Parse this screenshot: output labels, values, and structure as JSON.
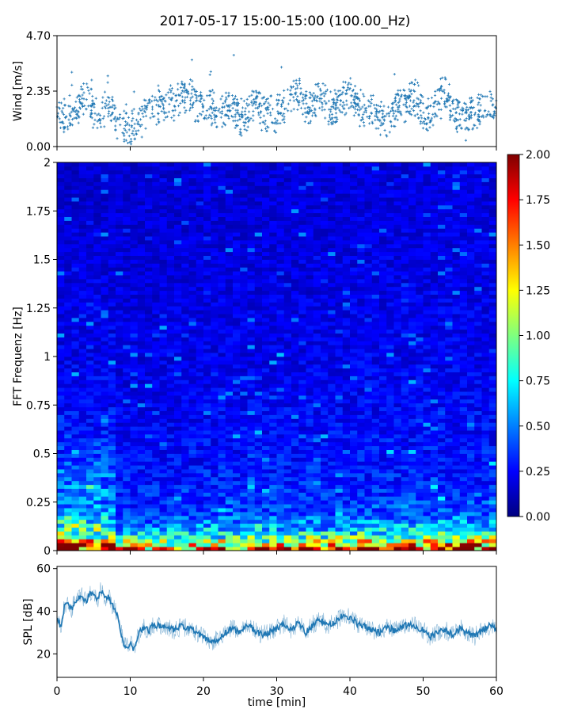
{
  "figure_title": "2017-05-17 15:00-15:00 (100.00_Hz)",
  "colormap": [
    "#00007f",
    "#0000ff",
    "#007fff",
    "#00ffff",
    "#7fff7f",
    "#ffff00",
    "#ff7f00",
    "#ff0000",
    "#7f0000"
  ],
  "chart_data": [
    {
      "id": "wind",
      "type": "scatter",
      "title": "",
      "xlabel": "",
      "ylabel": "Wind [m/s]",
      "xlim": [
        0,
        60
      ],
      "ylim": [
        0,
        4.7
      ],
      "yticks": [
        "0.00",
        "2.35",
        "4.70"
      ],
      "marker": "+",
      "color": "#1f77b4",
      "series": [
        {
          "x": [
            0,
            1,
            2,
            3,
            4,
            5,
            6,
            7,
            8,
            9,
            10,
            11,
            12,
            13,
            14,
            15,
            16,
            17,
            18,
            19,
            20,
            21,
            22,
            23,
            24,
            25,
            26,
            27,
            28,
            29,
            30,
            31,
            32,
            33,
            34,
            35,
            36,
            37,
            38,
            39,
            40,
            41,
            42,
            43,
            44,
            45,
            46,
            47,
            48,
            49,
            50,
            51,
            52,
            53,
            54,
            55,
            56,
            57,
            58,
            59,
            60
          ],
          "y": [
            1.3,
            1.2,
            1.4,
            1.6,
            2.2,
            1.5,
            1.3,
            1.9,
            1.0,
            0.8,
            0.7,
            0.8,
            1.5,
            1.8,
            1.7,
            2.0,
            1.6,
            2.2,
            2.3,
            1.9,
            1.6,
            1.7,
            1.4,
            1.5,
            1.8,
            1.2,
            1.4,
            1.9,
            1.5,
            1.3,
            1.4,
            1.7,
            2.0,
            2.3,
            1.6,
            1.8,
            2.2,
            1.5,
            1.7,
            2.0,
            2.2,
            1.8,
            1.4,
            1.6,
            1.2,
            1.1,
            1.6,
            1.9,
            1.8,
            2.1,
            1.4,
            1.3,
            1.9,
            2.2,
            1.5,
            1.3,
            1.1,
            1.4,
            1.6,
            1.8,
            1.5
          ]
        }
      ]
    },
    {
      "id": "spectrogram",
      "type": "heatmap",
      "title": "",
      "xlabel": "",
      "ylabel": "FFT Frequenz [Hz]",
      "xlim": [
        0,
        60
      ],
      "ylim": [
        0,
        2
      ],
      "yticks": [
        "0",
        "0.25",
        "0.5",
        "0.75",
        "1",
        "1.25",
        "1.5",
        "1.75",
        "2"
      ],
      "colorbar": {
        "range": [
          0,
          2
        ],
        "ticks": [
          "0.00",
          "0.25",
          "0.50",
          "0.75",
          "1.00",
          "1.25",
          "1.50",
          "1.75",
          "2.00"
        ]
      },
      "frequency_bands_hz": [
        0.0,
        0.03,
        0.06,
        0.1,
        0.15,
        0.2,
        0.3,
        0.4,
        0.5,
        0.75,
        1.0,
        1.5,
        2.0
      ],
      "band_levels": [
        {
          "time_min": [
            0,
            8
          ],
          "levels": [
            2.0,
            1.7,
            1.1,
            0.9,
            0.75,
            0.55,
            0.5,
            0.45,
            0.35,
            0.25,
            0.22,
            0.18,
            0.15
          ]
        },
        {
          "time_min": [
            8,
            20
          ],
          "levels": [
            1.6,
            1.2,
            0.8,
            0.6,
            0.45,
            0.35,
            0.3,
            0.28,
            0.25,
            0.22,
            0.2,
            0.18,
            0.16
          ]
        },
        {
          "time_min": [
            20,
            40
          ],
          "levels": [
            1.8,
            1.4,
            0.9,
            0.65,
            0.5,
            0.4,
            0.32,
            0.3,
            0.27,
            0.24,
            0.21,
            0.19,
            0.17
          ]
        },
        {
          "time_min": [
            40,
            60
          ],
          "levels": [
            1.9,
            1.5,
            1.0,
            0.7,
            0.55,
            0.42,
            0.33,
            0.3,
            0.28,
            0.25,
            0.22,
            0.2,
            0.18
          ]
        }
      ]
    },
    {
      "id": "spl",
      "type": "line",
      "title": "",
      "xlabel": "time [min]",
      "ylabel": "SPL [dB]",
      "xlim": [
        0,
        60
      ],
      "ylim": [
        9,
        61
      ],
      "xticks": [
        "0",
        "10",
        "20",
        "30",
        "40",
        "50",
        "60"
      ],
      "yticks": [
        "20",
        "40",
        "60"
      ],
      "color": "#1f77b4",
      "series": [
        {
          "x": [
            0,
            0.5,
            1,
            1.5,
            2,
            2.5,
            3,
            3.5,
            4,
            4.5,
            5,
            5.5,
            6,
            6.5,
            7,
            7.5,
            8,
            8.5,
            9,
            9.5,
            10,
            10.5,
            11,
            11.5,
            12,
            12.5,
            13,
            14,
            15,
            16,
            17,
            18,
            19,
            20,
            21,
            22,
            23,
            24,
            25,
            26,
            27,
            28,
            29,
            30,
            31,
            32,
            33,
            34,
            35,
            36,
            37,
            38,
            39,
            40,
            41,
            42,
            43,
            44,
            45,
            46,
            47,
            48,
            49,
            50,
            51,
            52,
            53,
            54,
            55,
            56,
            57,
            58,
            59,
            60
          ],
          "y": [
            37,
            32,
            42,
            44,
            41,
            45,
            46,
            47,
            44,
            49,
            48,
            45,
            50,
            46,
            47,
            43,
            41,
            34,
            26,
            23,
            25,
            22,
            28,
            31,
            33,
            30,
            34,
            33,
            32,
            31,
            33,
            32,
            30,
            28,
            25,
            27,
            30,
            32,
            30,
            34,
            31,
            29,
            30,
            32,
            34,
            31,
            35,
            30,
            34,
            36,
            33,
            35,
            38,
            37,
            34,
            33,
            31,
            30,
            33,
            31,
            32,
            34,
            33,
            31,
            28,
            30,
            31,
            29,
            32,
            30,
            28,
            31,
            33,
            32
          ]
        }
      ]
    }
  ]
}
